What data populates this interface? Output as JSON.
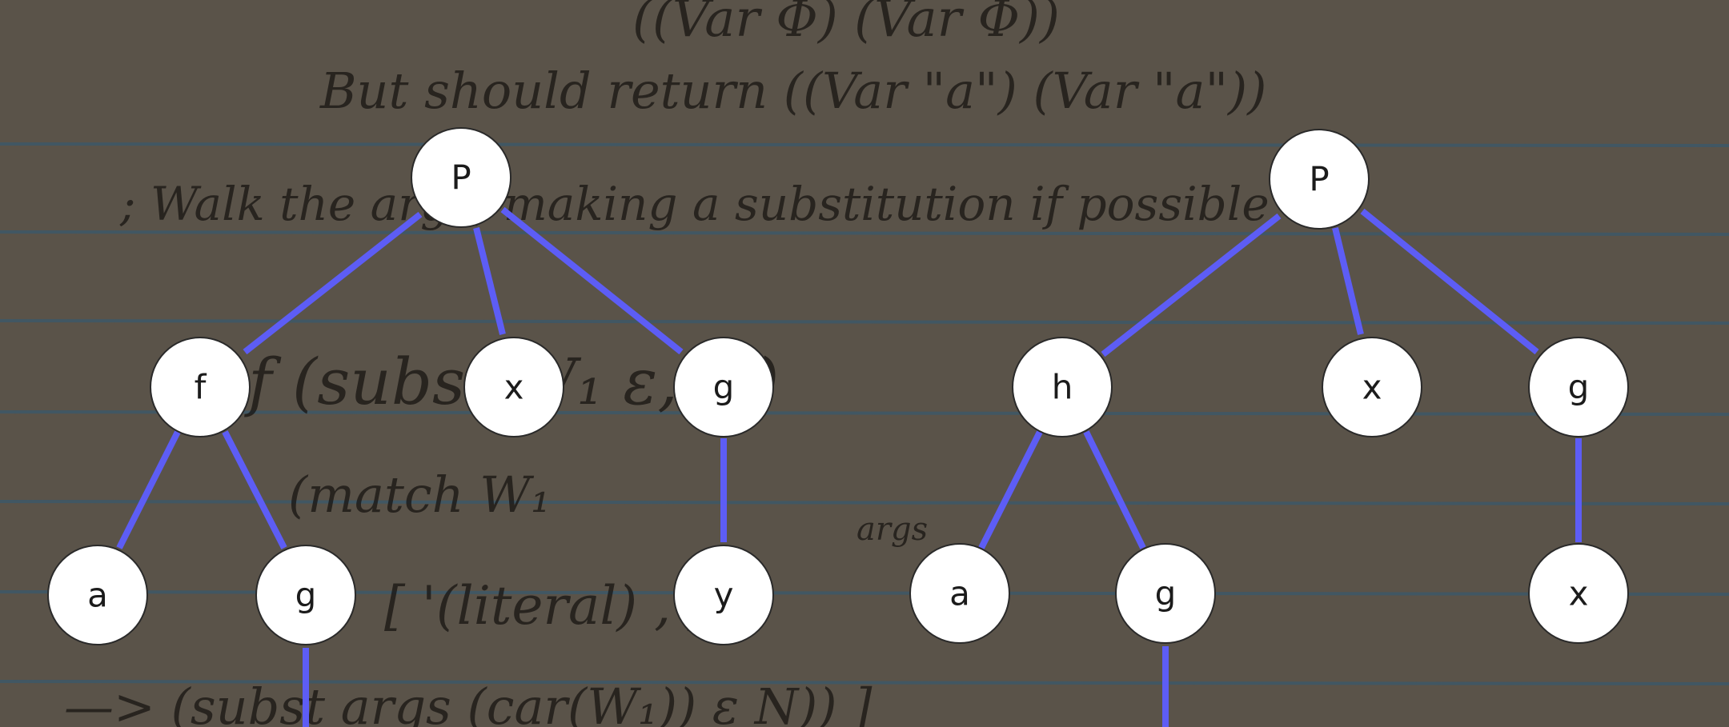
{
  "colors": {
    "paper": "#5a5349",
    "ruled_line": "#3d5868",
    "edge": "#5d5df5",
    "node_fill": "#ffffff",
    "node_text": "#1b1b1b"
  },
  "background_handwriting": [
    "((Var Φ) (Var Φ))",
    "But should return  ((Var \"a\") (Var \"a\"))",
    "; Walk the args, making a substitution if possible",
    "f (subst W₁ ε, N)",
    "(match W₁",
    "args",
    "[ '(literal) , ]",
    "—>   (subst args (car(W₁)) ε N)) ]"
  ],
  "trees": [
    {
      "id": "left",
      "nodes": [
        {
          "id": "P",
          "label": "P"
        },
        {
          "id": "f",
          "label": "f"
        },
        {
          "id": "x",
          "label": "x"
        },
        {
          "id": "g1",
          "label": "g"
        },
        {
          "id": "a",
          "label": "a"
        },
        {
          "id": "g2",
          "label": "g"
        },
        {
          "id": "y",
          "label": "y"
        }
      ],
      "edges": [
        [
          "P",
          "f"
        ],
        [
          "P",
          "x"
        ],
        [
          "P",
          "g1"
        ],
        [
          "f",
          "a"
        ],
        [
          "f",
          "g2"
        ],
        [
          "g1",
          "y"
        ],
        [
          "g2",
          null
        ]
      ]
    },
    {
      "id": "right",
      "nodes": [
        {
          "id": "P",
          "label": "P"
        },
        {
          "id": "h",
          "label": "h"
        },
        {
          "id": "x",
          "label": "x"
        },
        {
          "id": "g1",
          "label": "g"
        },
        {
          "id": "a",
          "label": "a"
        },
        {
          "id": "g2",
          "label": "g"
        },
        {
          "id": "x2",
          "label": "x"
        }
      ],
      "edges": [
        [
          "P",
          "h"
        ],
        [
          "P",
          "x"
        ],
        [
          "P",
          "g1"
        ],
        [
          "h",
          "a"
        ],
        [
          "h",
          "g2"
        ],
        [
          "g1",
          "x2"
        ],
        [
          "g2",
          null
        ]
      ]
    }
  ]
}
